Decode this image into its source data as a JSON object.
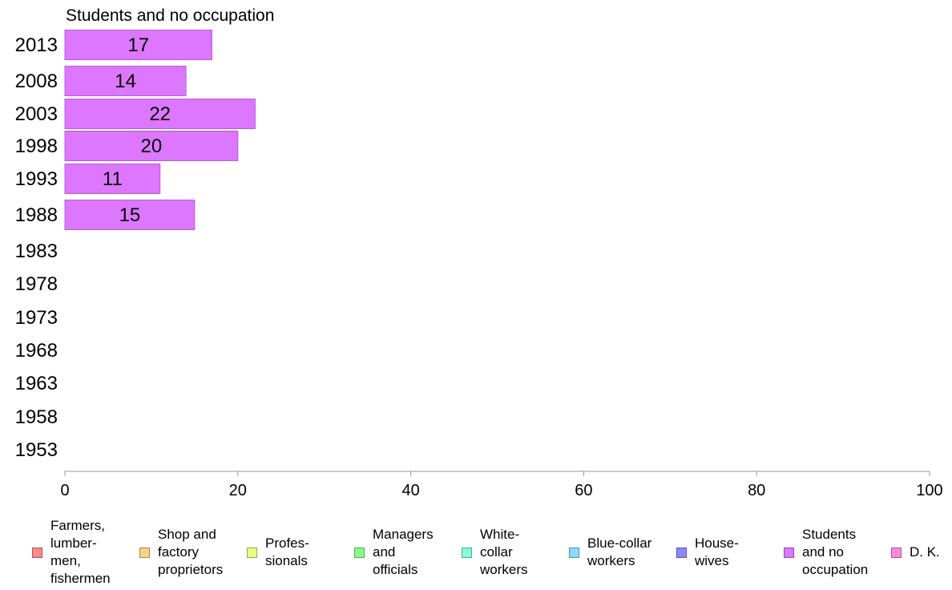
{
  "chart_data": {
    "type": "bar",
    "orientation": "horizontal",
    "title": "Students and no occupation",
    "categories": [
      "2013",
      "2008",
      "2003",
      "1998",
      "1993",
      "1988",
      "1983",
      "1978",
      "1973",
      "1968",
      "1963",
      "1958",
      "1953"
    ],
    "series": [
      {
        "name": "Students and no occupation",
        "values": [
          17,
          14,
          22,
          20,
          11,
          15,
          null,
          null,
          null,
          null,
          null,
          null,
          null
        ]
      }
    ],
    "data_labels": [
      "17",
      "14",
      "22",
      "20",
      "11",
      "15"
    ],
    "xlim": [
      0,
      100
    ],
    "xticks": [
      "0",
      "20",
      "40",
      "60",
      "80",
      "100"
    ],
    "grid": false,
    "legend_position": "bottom",
    "bar_color": "#dd77ff"
  },
  "legend": {
    "items": [
      {
        "label": "Farmers,\nlumber-\nmen,\nfishermen",
        "color": "#ff8888"
      },
      {
        "label": "Shop and\nfactory\nproprietors",
        "color": "#ffd27f"
      },
      {
        "label": "Profes-\nsionals",
        "color": "#e6ff88"
      },
      {
        "label": "Managers\nand\nofficials",
        "color": "#88ff88"
      },
      {
        "label": "White-\ncollar\nworkers",
        "color": "#88ffdd"
      },
      {
        "label": "Blue-collar\nworkers",
        "color": "#88ddff"
      },
      {
        "label": "House-\nwives",
        "color": "#8888ff"
      },
      {
        "label": "Students\nand no\noccupation",
        "color": "#dd77ff"
      },
      {
        "label": "D. K.",
        "color": "#ff88dd"
      }
    ]
  }
}
